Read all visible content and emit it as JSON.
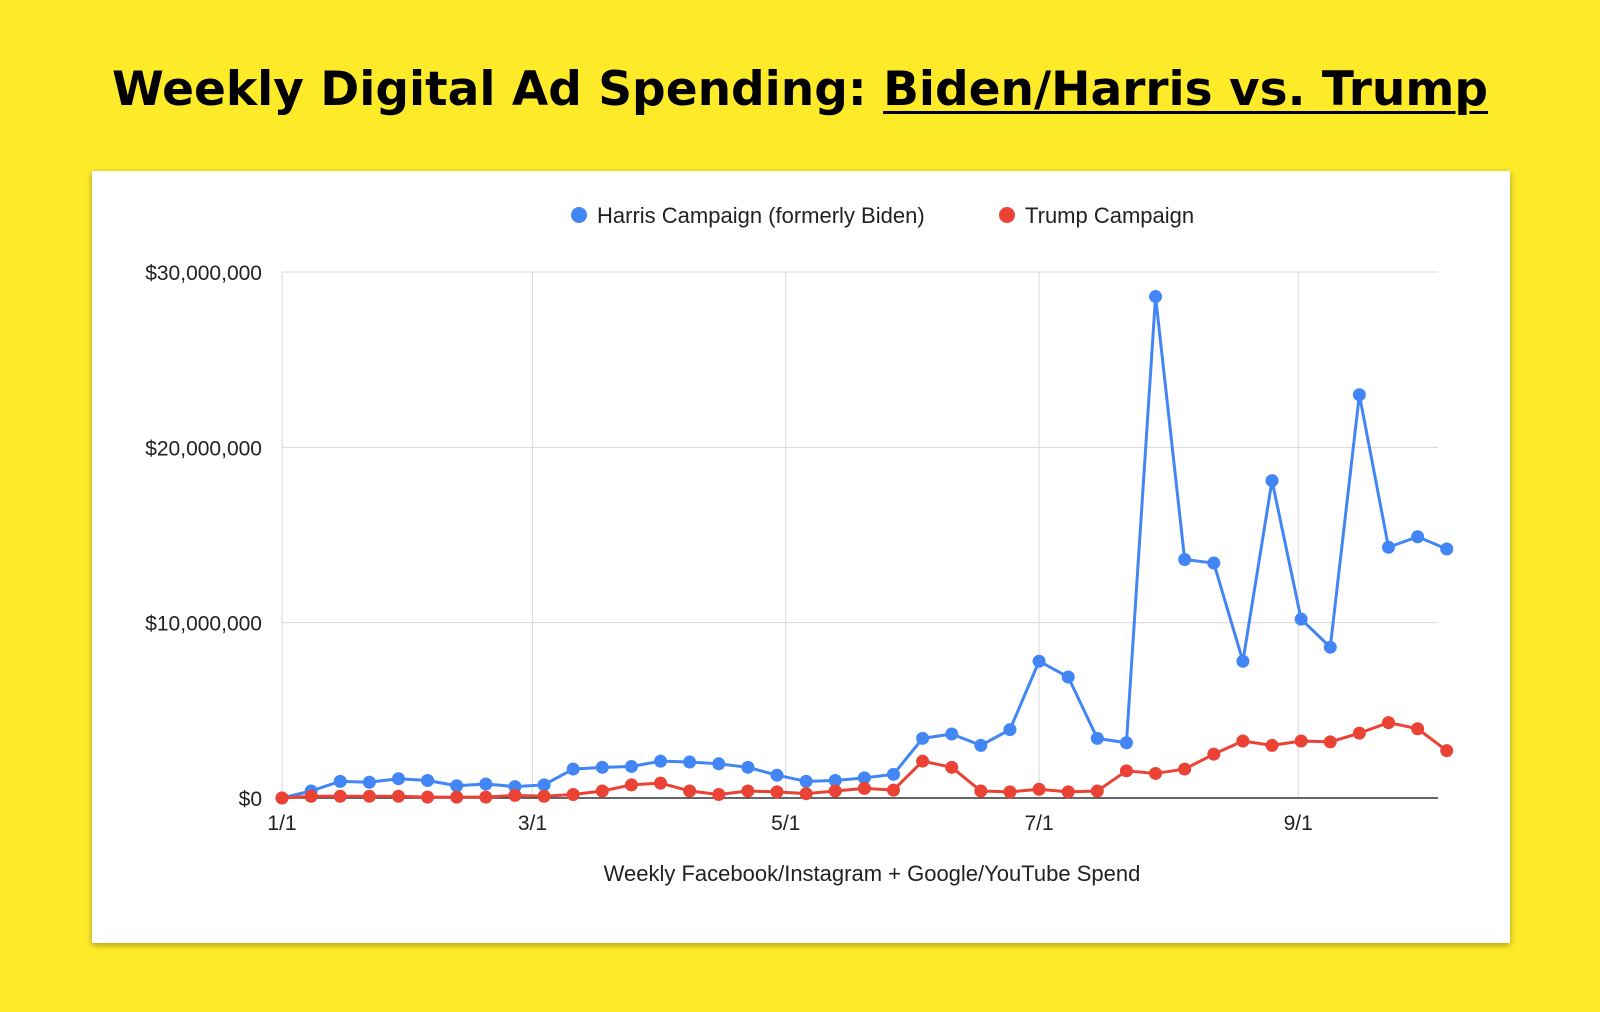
{
  "title": {
    "prefix": "Weekly Digital Ad Spending: ",
    "emphasis": "Biden/Harris vs. Trump"
  },
  "chart_data": {
    "type": "line",
    "xlabel": "Weekly Facebook/Instagram + Google/YouTube Spend",
    "ylabel": "",
    "ylim": [
      0,
      30000000
    ],
    "yticks": [
      0,
      10000000,
      20000000,
      30000000
    ],
    "ytick_labels": [
      "$0",
      "$10,000,000",
      "$20,000,000",
      "$30,000,000"
    ],
    "xticks": [
      0,
      8.6,
      17.3,
      26,
      34.9
    ],
    "xtick_labels": [
      "1/1",
      "3/1",
      "5/1",
      "7/1",
      "9/1"
    ],
    "xlim": [
      0,
      39.7
    ],
    "grid": true,
    "legend_position": "top-center",
    "series": [
      {
        "name": "Harris Campaign (formerly Biden)",
        "color": "#4285F4",
        "values": [
          0,
          400000,
          950000,
          900000,
          1100000,
          1000000,
          700000,
          800000,
          650000,
          750000,
          1650000,
          1750000,
          1800000,
          2100000,
          2050000,
          1950000,
          1750000,
          1300000,
          950000,
          1000000,
          1150000,
          1350000,
          3400000,
          3650000,
          3000000,
          3900000,
          7800000,
          6900000,
          3400000,
          3150000,
          28600000,
          13600000,
          13400000,
          7800000,
          18100000,
          10200000,
          8600000,
          23000000,
          14300000,
          14900000,
          14200000
        ]
      },
      {
        "name": "Trump Campaign",
        "color": "#EA4335",
        "values": [
          0,
          100000,
          100000,
          100000,
          100000,
          50000,
          50000,
          50000,
          150000,
          100000,
          200000,
          400000,
          750000,
          850000,
          400000,
          200000,
          400000,
          350000,
          250000,
          400000,
          550000,
          450000,
          2100000,
          1750000,
          400000,
          350000,
          500000,
          350000,
          400000,
          1550000,
          1400000,
          1650000,
          2500000,
          3250000,
          3000000,
          3250000,
          3200000,
          3700000,
          4300000,
          3950000,
          2700000
        ]
      }
    ]
  }
}
